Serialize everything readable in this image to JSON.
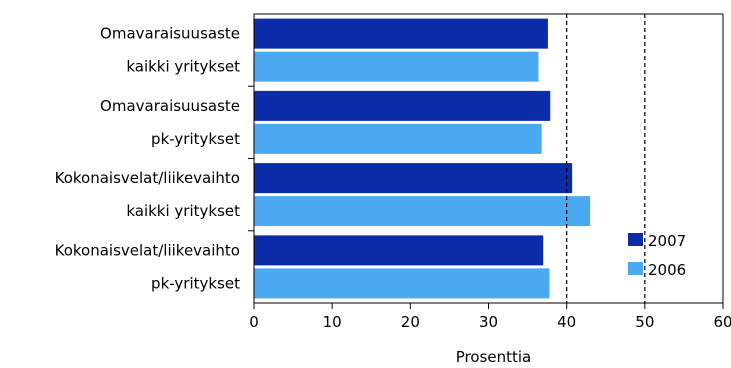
{
  "chart_data": {
    "type": "bar",
    "orientation": "horizontal",
    "categories": [
      [
        "Omavaraisuusaste",
        "kaikki yritykset"
      ],
      [
        "Omavaraisuusaste",
        "pk-yritykset"
      ],
      [
        "Kokonaisvelat/liikevaihto",
        "kaikki yritykset"
      ],
      [
        "Kokonaisvelat/liikevaihto",
        "pk-yritykset"
      ]
    ],
    "series": [
      {
        "name": "2007",
        "color": "#0a2ca6",
        "values": [
          37.6,
          37.9,
          40.7,
          37.0
        ]
      },
      {
        "name": "2006",
        "color": "#4aa9f0",
        "values": [
          36.4,
          36.8,
          43.0,
          37.8
        ]
      }
    ],
    "xlabel": "Prosenttia",
    "xlim": [
      0,
      60
    ],
    "xticks": [
      0,
      10,
      20,
      30,
      40,
      50,
      60
    ],
    "reference_lines": [
      40,
      50
    ],
    "grid": false,
    "legend_position": "bottom-right"
  }
}
